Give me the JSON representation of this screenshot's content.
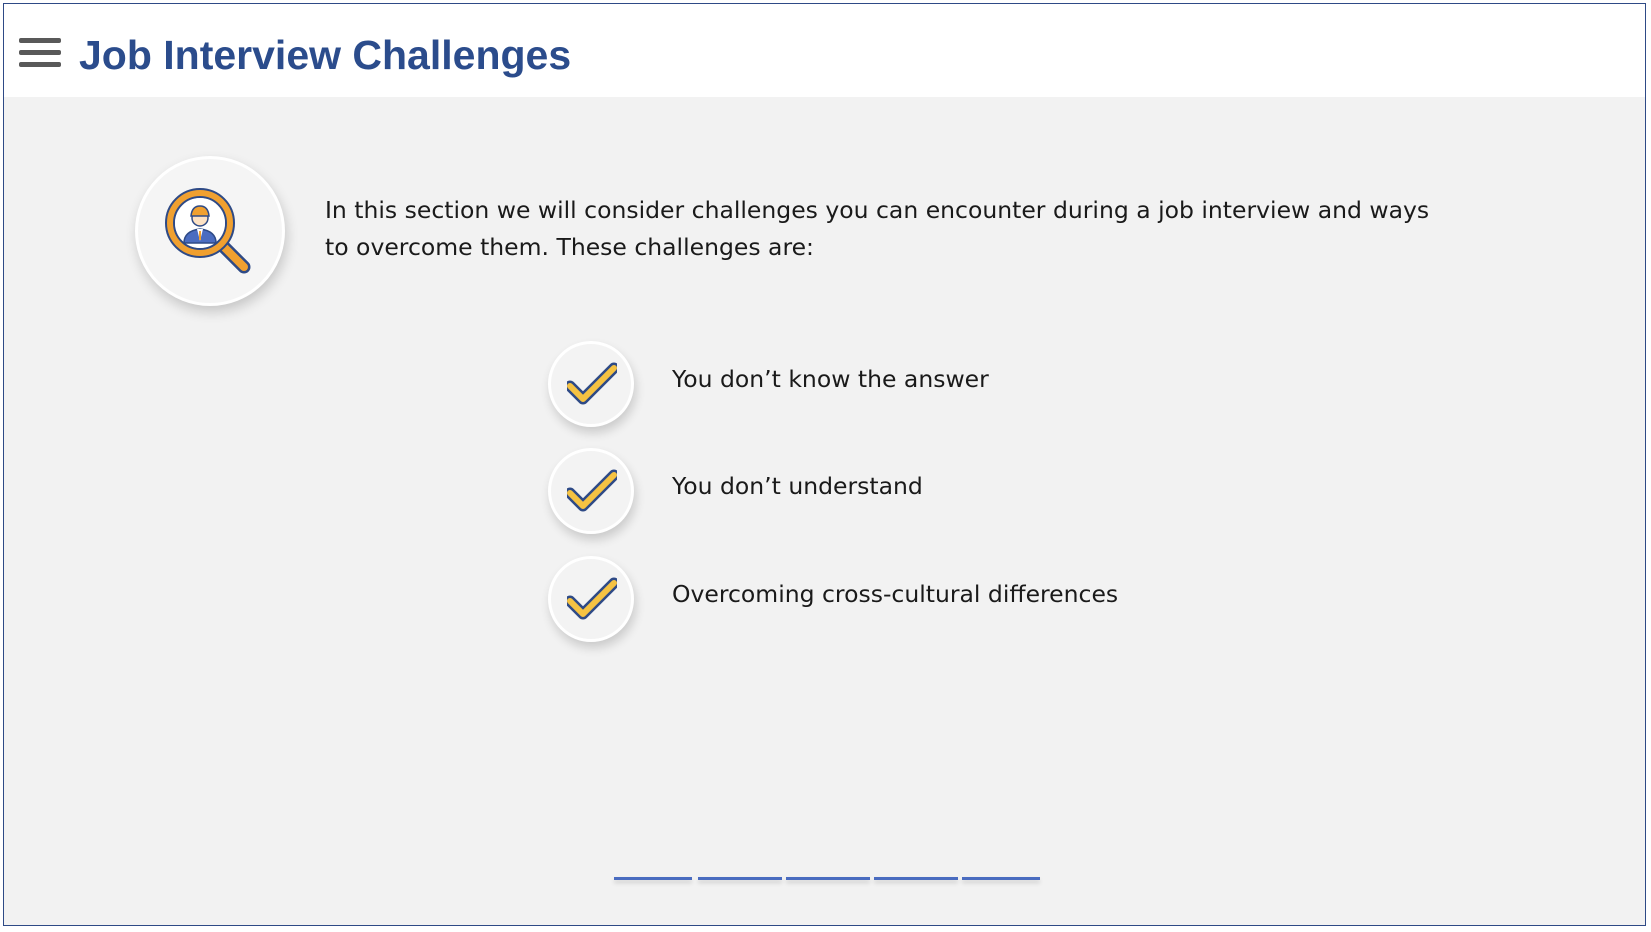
{
  "header": {
    "title": "Job Interview Challenges",
    "menu_icon": "hamburger-menu-icon"
  },
  "intro": {
    "icon": "job-search-magnifier-icon",
    "text": "In this section we will consider challenges you can encounter during a job interview and ways to overcome them. These challenges are:"
  },
  "challenges": [
    {
      "icon": "checkmark-icon",
      "label": "You don’t know the answer"
    },
    {
      "icon": "checkmark-icon",
      "label": "You don’t understand"
    },
    {
      "icon": "checkmark-icon",
      "label": "Overcoming cross-cultural differences"
    }
  ],
  "progress": {
    "segments": 5
  },
  "colors": {
    "title": "#2b4c8c",
    "background": "#f2f2f2",
    "header_background": "#ffffff",
    "check_fill": "#f5c242",
    "check_stroke": "#2e4a86",
    "magnifier": "#f0a030",
    "progress": "#4a6cc0",
    "frame_border": "#2e4a86"
  }
}
